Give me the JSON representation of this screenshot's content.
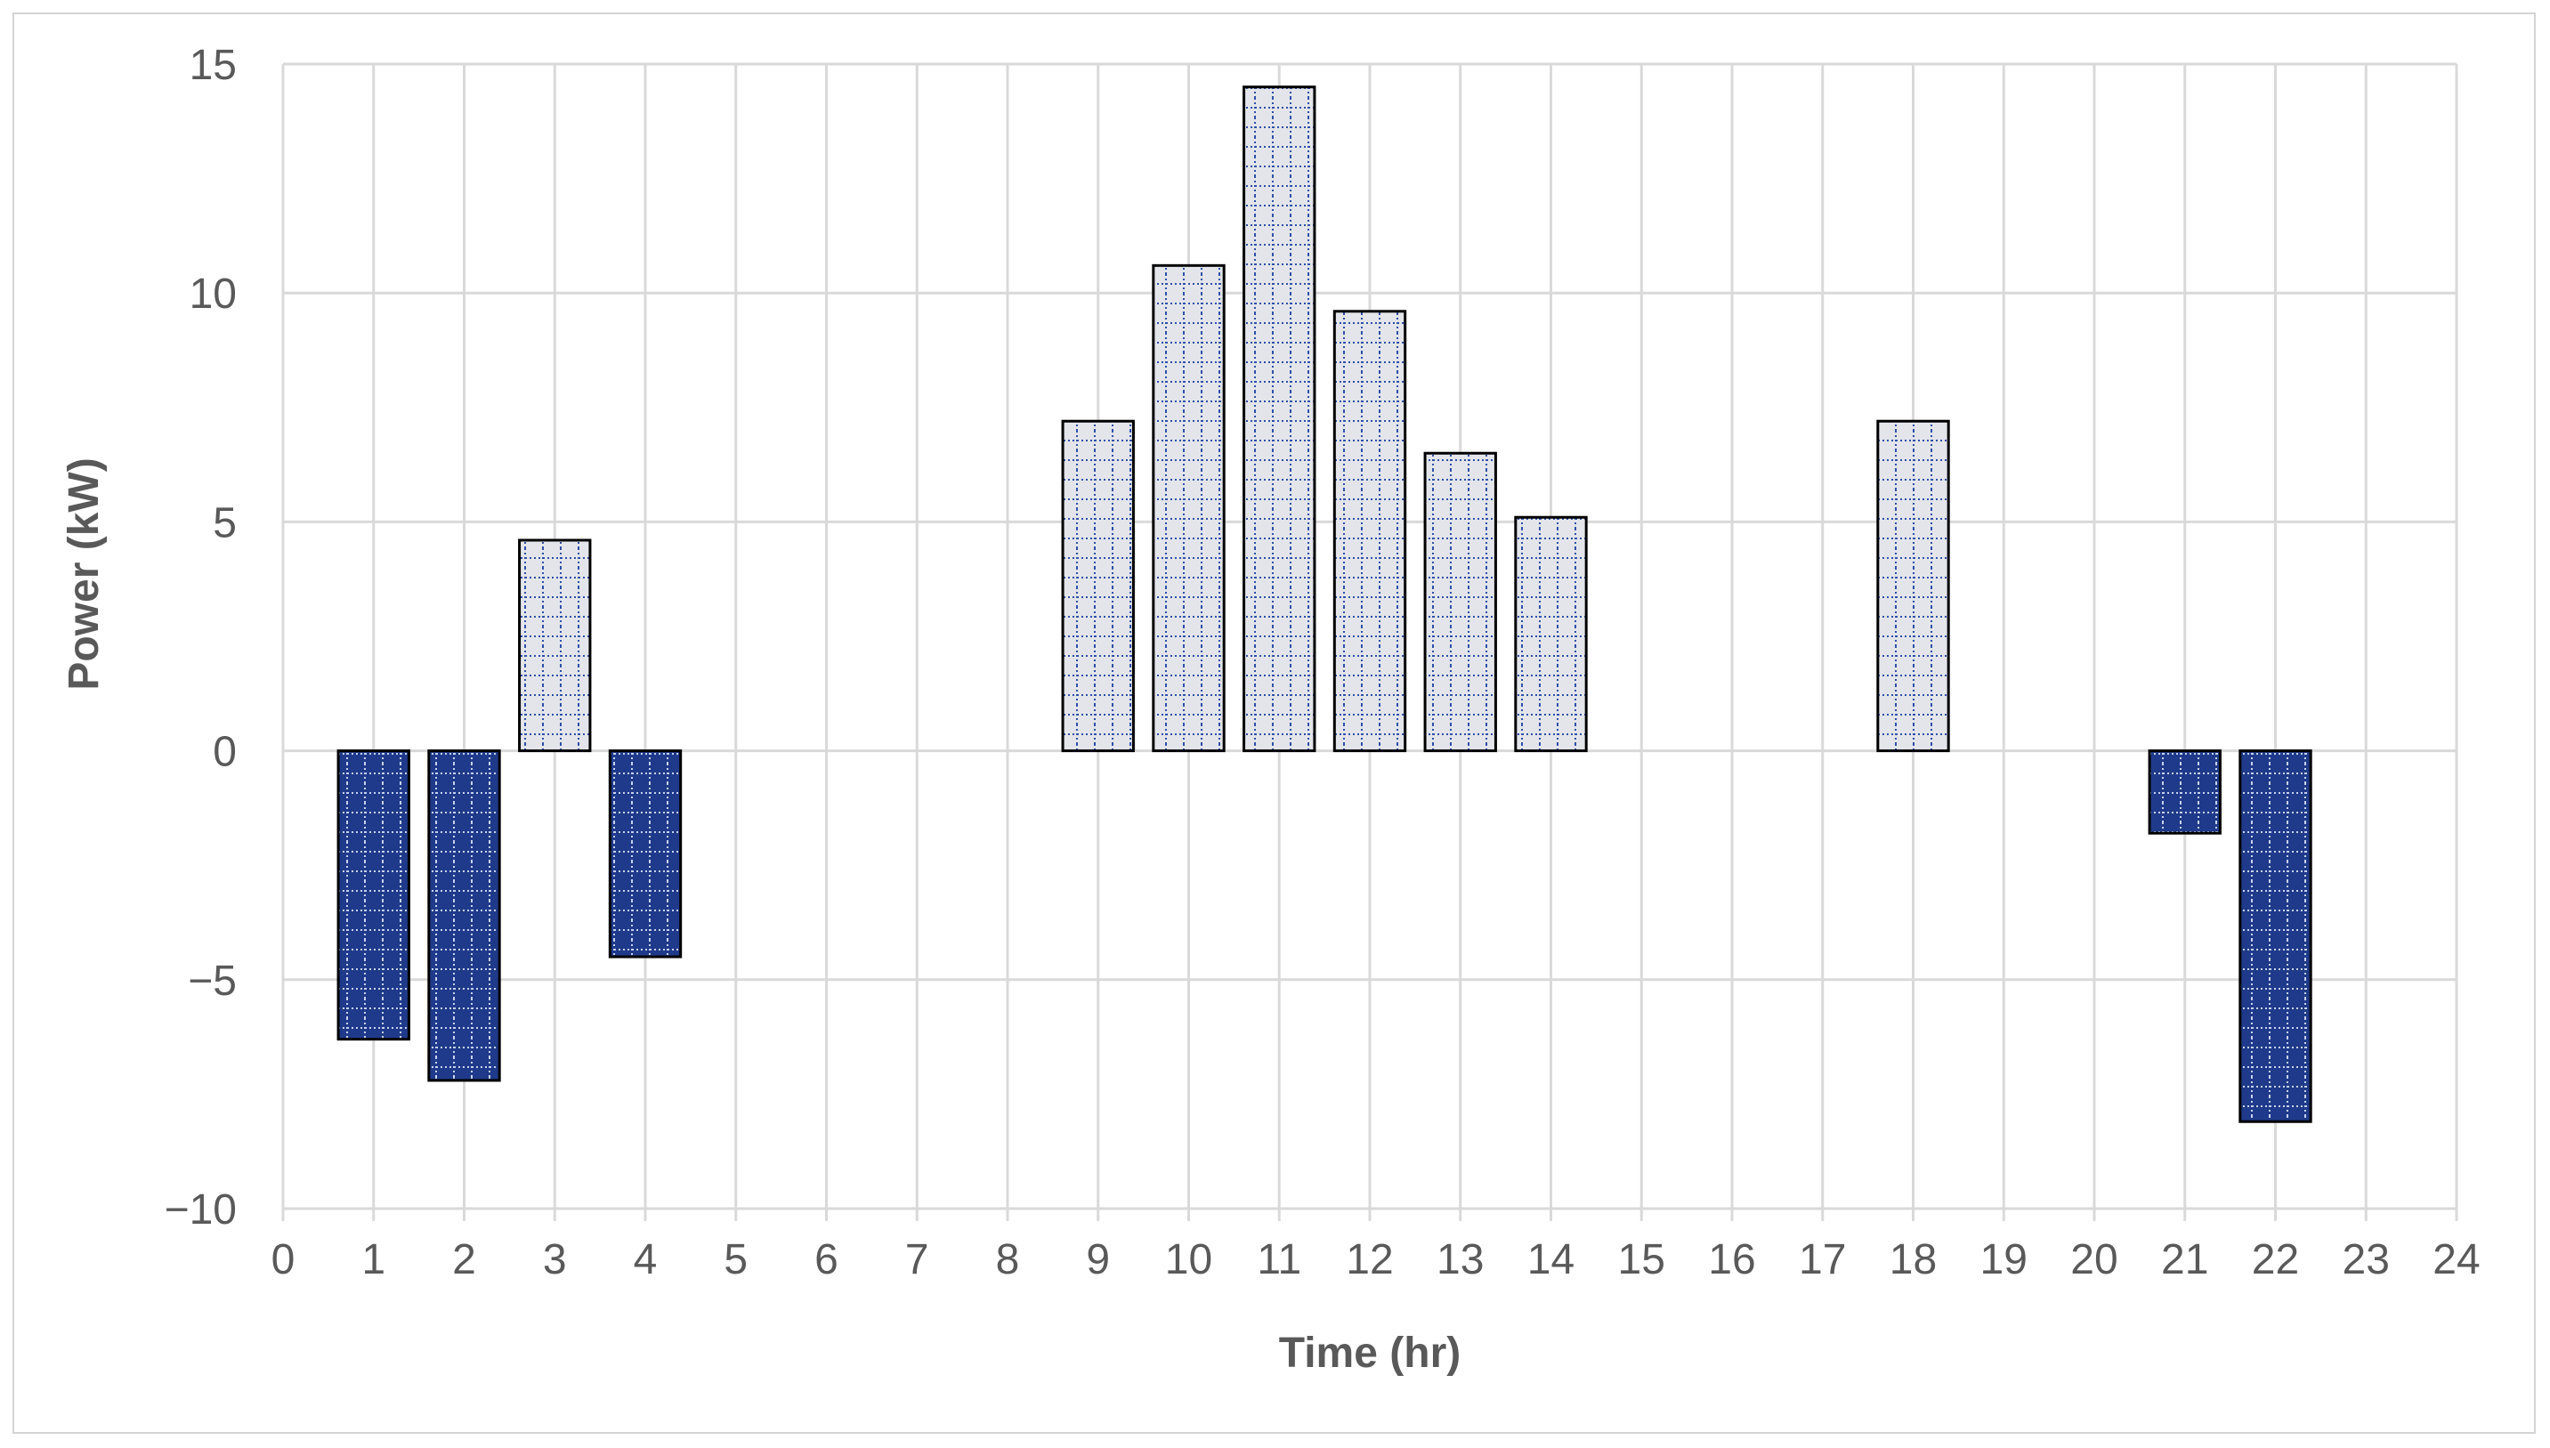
{
  "chart_data": {
    "type": "bar",
    "title": "",
    "xlabel": "Time (hr)",
    "ylabel": "Power (kW)",
    "xlim": [
      0,
      24
    ],
    "ylim": [
      -10,
      15
    ],
    "x_ticks": [
      "0",
      "1",
      "2",
      "3",
      "4",
      "5",
      "6",
      "7",
      "8",
      "9",
      "10",
      "11",
      "12",
      "13",
      "14",
      "15",
      "16",
      "17",
      "18",
      "19",
      "20",
      "21",
      "22",
      "23",
      "24"
    ],
    "y_ticks": [
      {
        "value": 15,
        "label": "15"
      },
      {
        "value": 10,
        "label": "10"
      },
      {
        "value": 5,
        "label": "5"
      },
      {
        "value": 0,
        "label": "0"
      },
      {
        "value": -5,
        "label": "−5"
      },
      {
        "value": -10,
        "label": "−10"
      }
    ],
    "grid": true,
    "legend": false,
    "colors": {
      "positive_fill": "#e3e5ea",
      "negative_fill": "#1f3a8a",
      "pattern": "#2e4fa8",
      "bar_outline": "#000000",
      "grid": "#d9d9d9",
      "text": "#595959"
    },
    "bars": [
      {
        "x": 1,
        "value": -6.3
      },
      {
        "x": 2,
        "value": -7.2
      },
      {
        "x": 3,
        "value": 4.6
      },
      {
        "x": 4,
        "value": -4.5
      },
      {
        "x": 9,
        "value": 7.2
      },
      {
        "x": 10,
        "value": 10.6
      },
      {
        "x": 11,
        "value": 14.5
      },
      {
        "x": 12,
        "value": 9.6
      },
      {
        "x": 13,
        "value": 6.5
      },
      {
        "x": 14,
        "value": 5.1
      },
      {
        "x": 18,
        "value": 7.2
      },
      {
        "x": 21,
        "value": -1.8
      },
      {
        "x": 22,
        "value": -8.1
      }
    ]
  }
}
